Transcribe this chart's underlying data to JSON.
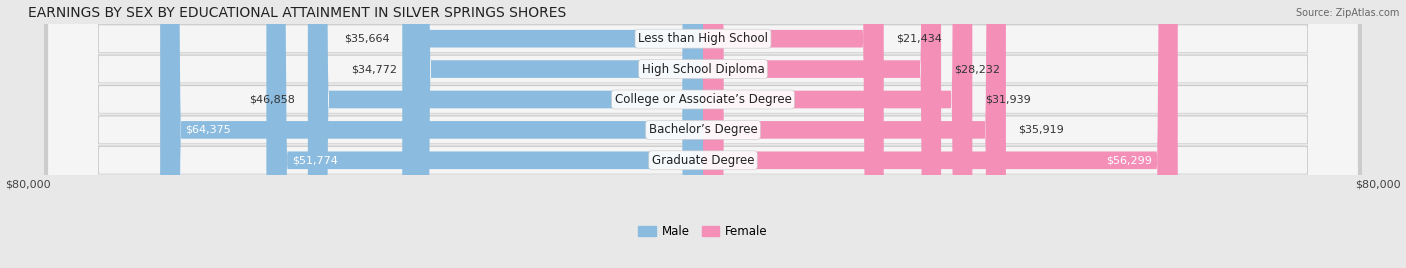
{
  "title": "EARNINGS BY SEX BY EDUCATIONAL ATTAINMENT IN SILVER SPRINGS SHORES",
  "source": "Source: ZipAtlas.com",
  "categories": [
    "Less than High School",
    "High School Diploma",
    "College or Associate’s Degree",
    "Bachelor’s Degree",
    "Graduate Degree"
  ],
  "male_values": [
    35664,
    34772,
    46858,
    64375,
    51774
  ],
  "female_values": [
    21434,
    28232,
    31939,
    35919,
    56299
  ],
  "male_color": "#8bbcdf",
  "female_color": "#f490b8",
  "female_color_dark": "#e8638f",
  "max_val": 80000,
  "background_color": "#e8e8e8",
  "row_bg_light": "#f8f8f8",
  "row_bg_dark": "#d8d8d8",
  "title_fontsize": 10,
  "label_fontsize": 8.5,
  "value_fontsize": 8.0
}
